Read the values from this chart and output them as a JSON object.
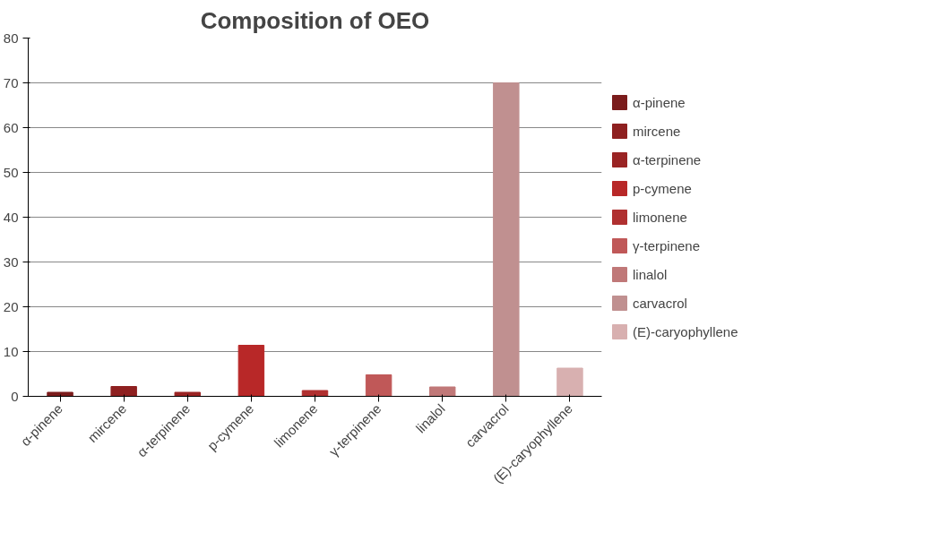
{
  "chart_data": {
    "type": "bar",
    "title": "Composition of OEO",
    "categories": [
      "α-pinene",
      "mircene",
      "α-terpinene",
      "p-cymene",
      "limonene",
      "γ-terpinene",
      "linalol",
      "carvacrol",
      "(E)-caryophyllene"
    ],
    "series": [
      {
        "name": "α-pinene",
        "color": "#7b1c1c",
        "values": [
          0.9,
          null,
          null,
          null,
          null,
          null,
          null,
          null,
          null
        ]
      },
      {
        "name": "mircene",
        "color": "#8e2020",
        "values": [
          null,
          2.2,
          null,
          null,
          null,
          null,
          null,
          null,
          null
        ]
      },
      {
        "name": "α-terpinene",
        "color": "#9a2424",
        "values": [
          null,
          null,
          0.9,
          null,
          null,
          null,
          null,
          null,
          null
        ]
      },
      {
        "name": "p-cymene",
        "color": "#b82828",
        "values": [
          null,
          null,
          null,
          11.4,
          null,
          null,
          null,
          null,
          null
        ]
      },
      {
        "name": "limonene",
        "color": "#b03030",
        "values": [
          null,
          null,
          null,
          null,
          1.3,
          null,
          null,
          null,
          null
        ]
      },
      {
        "name": "γ-terpinene",
        "color": "#c05858",
        "values": [
          null,
          null,
          null,
          null,
          null,
          4.8,
          null,
          null,
          null
        ]
      },
      {
        "name": "linalol",
        "color": "#c07878",
        "values": [
          null,
          null,
          null,
          null,
          null,
          null,
          2.1,
          null,
          null
        ]
      },
      {
        "name": "carvacrol",
        "color": "#c09090",
        "values": [
          null,
          null,
          null,
          null,
          null,
          null,
          null,
          70,
          null
        ]
      },
      {
        "name": "(E)-caryophyllene",
        "color": "#d8b0b0",
        "values": [
          null,
          null,
          null,
          null,
          null,
          null,
          null,
          null,
          6.3
        ]
      }
    ],
    "ylim": [
      0,
      80
    ],
    "yticks": [
      0,
      10,
      20,
      30,
      40,
      50,
      60,
      70,
      80
    ],
    "grid": "y",
    "legend": "right"
  }
}
